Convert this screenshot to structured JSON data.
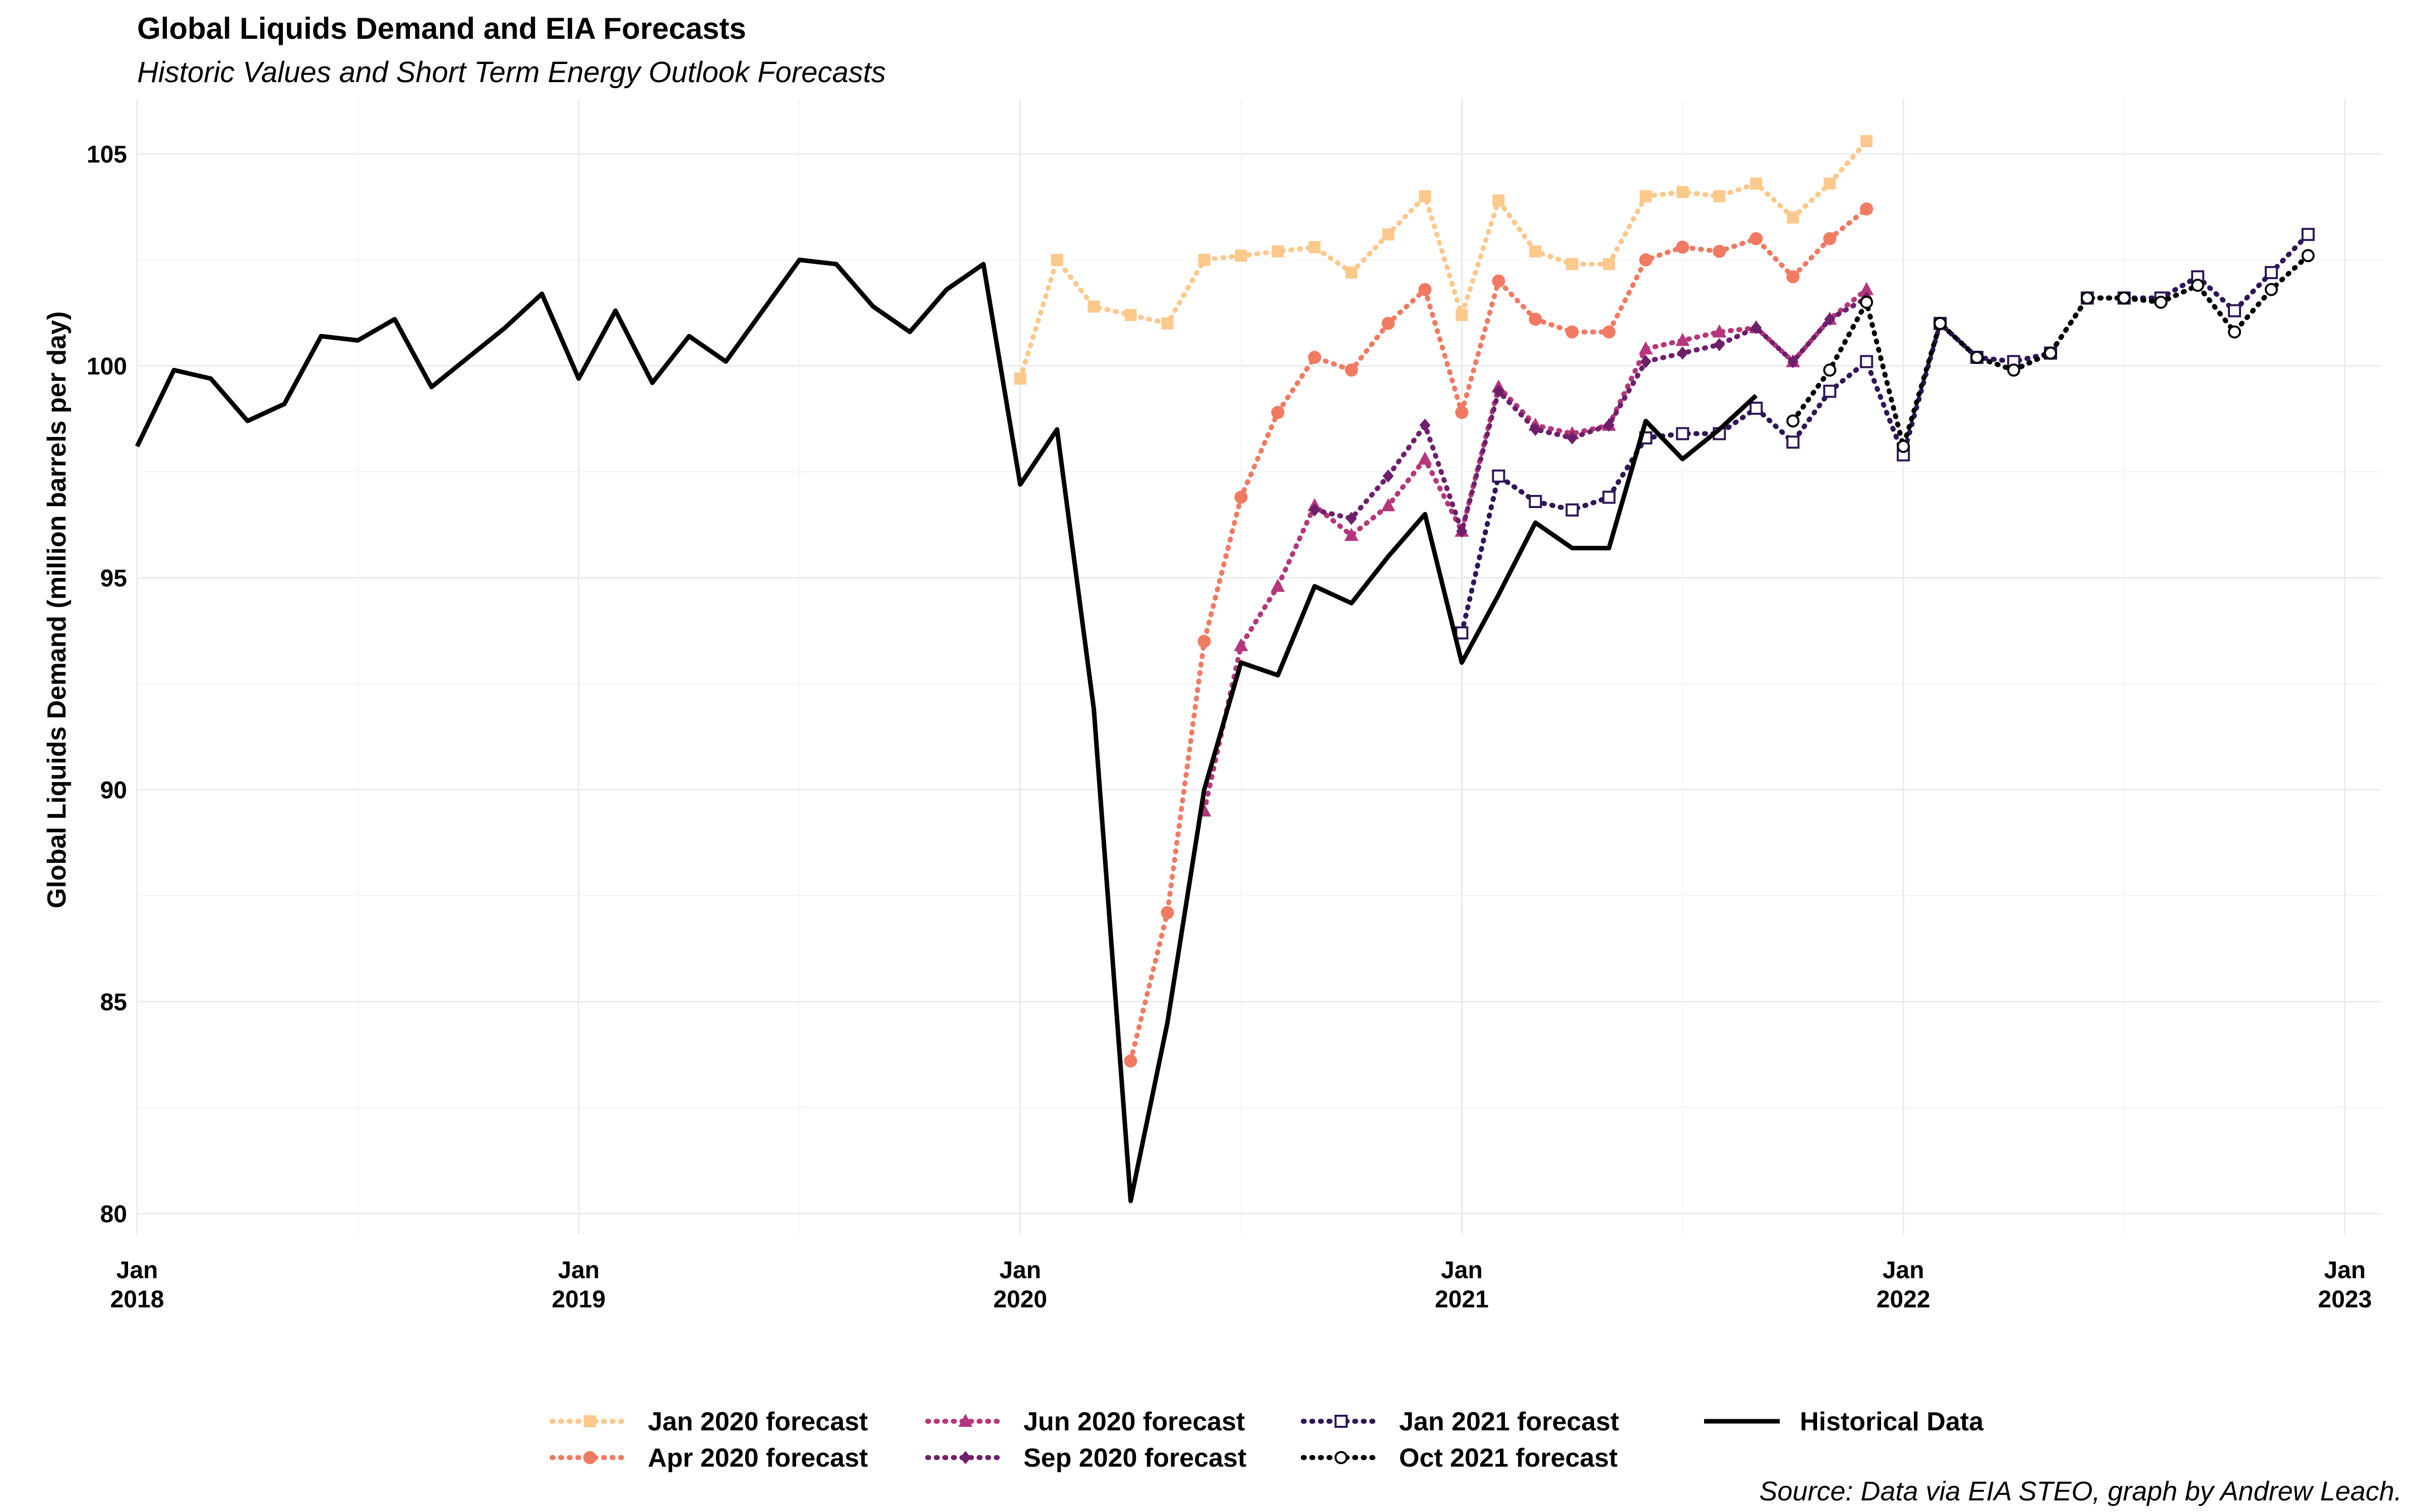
{
  "title": "Global Liquids Demand and EIA Forecasts",
  "subtitle": "Historic Values and Short Term Energy Outlook Forecasts",
  "caption": "Source: Data via EIA STEO, graph by Andrew Leach.",
  "chart_data": {
    "type": "line",
    "ylabel": "Global Liquids Demand (million barrels per day)",
    "xlabel": "",
    "ylim": [
      79.5,
      106.3
    ],
    "xlim": [
      "2018-01",
      "2023-02"
    ],
    "yticks": [
      80,
      85,
      90,
      95,
      100,
      105
    ],
    "xticks": [
      {
        "date": "2018-01",
        "label": [
          "Jan",
          "2018"
        ]
      },
      {
        "date": "2019-01",
        "label": [
          "Jan",
          "2019"
        ]
      },
      {
        "date": "2020-01",
        "label": [
          "Jan",
          "2020"
        ]
      },
      {
        "date": "2021-01",
        "label": [
          "Jan",
          "2021"
        ]
      },
      {
        "date": "2022-01",
        "label": [
          "Jan",
          "2022"
        ]
      },
      {
        "date": "2023-01",
        "label": [
          "Jan",
          "2023"
        ]
      }
    ],
    "grid": true,
    "legend_position": "bottom",
    "series": [
      {
        "name": "Jan 2020 forecast",
        "color": "#fcc98c",
        "dash": "dotted",
        "marker": "square",
        "start": "2020-01",
        "values": [
          99.7,
          102.5,
          101.4,
          101.2,
          101.0,
          102.5,
          102.6,
          102.7,
          102.8,
          102.2,
          103.1,
          104.0,
          101.2,
          103.9,
          102.7,
          102.4,
          102.4,
          104.0,
          104.1,
          104.0,
          104.3,
          103.5,
          104.3,
          105.3
        ]
      },
      {
        "name": "Apr 2020 forecast",
        "color": "#f07b62",
        "dash": "dotted",
        "marker": "circle",
        "start": "2020-04",
        "values": [
          83.6,
          87.1,
          93.5,
          96.9,
          98.9,
          100.2,
          99.9,
          101.0,
          101.8,
          98.9,
          102.0,
          101.1,
          100.8,
          100.8,
          102.5,
          102.8,
          102.7,
          103.0,
          102.1,
          103.0,
          103.7
        ]
      },
      {
        "name": "Jun 2020 forecast",
        "color": "#b5367a",
        "dash": "dotted",
        "marker": "triangle",
        "start": "2020-06",
        "values": [
          89.5,
          93.4,
          94.8,
          96.7,
          96.0,
          96.7,
          97.8,
          96.1,
          99.5,
          98.6,
          98.4,
          98.6,
          100.4,
          100.6,
          100.8,
          100.9,
          100.1,
          101.1,
          101.8
        ]
      },
      {
        "name": "Sep 2020 forecast",
        "color": "#6e1f6b",
        "dash": "dotted",
        "marker": "diamond",
        "start": "2020-09",
        "values": [
          96.6,
          96.4,
          97.4,
          98.6,
          96.1,
          99.4,
          98.5,
          98.3,
          98.6,
          100.1,
          100.3,
          100.5,
          100.9,
          100.1,
          101.1,
          101.6
        ]
      },
      {
        "name": "Jan 2021 forecast",
        "color": "#2e1657",
        "dash": "dotted",
        "marker": "square-open",
        "start": "2021-01",
        "values": [
          93.7,
          97.4,
          96.8,
          96.6,
          96.9,
          98.3,
          98.4,
          98.4,
          99.0,
          98.2,
          99.4,
          100.1,
          97.9,
          101.0,
          100.2,
          100.1,
          100.3,
          101.6,
          101.6,
          101.6,
          102.1,
          101.3,
          102.2,
          103.1
        ]
      },
      {
        "name": "Oct 2021 forecast",
        "color": "#000004",
        "dash": "dotted",
        "marker": "circle-open",
        "start": "2021-10",
        "values": [
          98.7,
          99.9,
          101.5,
          98.1,
          101.0,
          100.2,
          99.9,
          100.3,
          101.6,
          101.6,
          101.5,
          101.9,
          100.8,
          101.8,
          102.6
        ]
      },
      {
        "name": "Historical Data",
        "color": "#000000",
        "dash": "solid",
        "marker": "none",
        "start": "2018-01",
        "values": [
          98.1,
          99.9,
          99.7,
          98.7,
          99.1,
          100.7,
          100.6,
          101.1,
          99.5,
          100.2,
          100.9,
          101.7,
          99.7,
          101.3,
          99.6,
          100.7,
          100.1,
          101.3,
          102.5,
          102.4,
          101.4,
          100.8,
          101.8,
          102.4,
          97.2,
          98.5,
          91.9,
          80.3,
          84.5,
          90.0,
          93.0,
          92.7,
          94.8,
          94.4,
          95.5,
          96.5,
          93.0,
          94.6,
          96.3,
          95.7,
          95.7,
          98.7,
          97.8,
          98.5,
          99.3
        ]
      }
    ]
  }
}
